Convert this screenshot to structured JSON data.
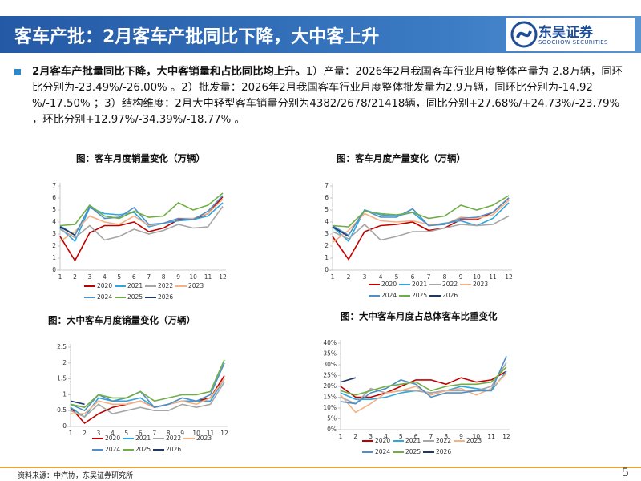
{
  "header": {
    "title": "客车产批：2月客车产批同比下降，大中客上升",
    "logo_cn": "东吴证券",
    "logo_en": "SOOCHOW SECURITIES"
  },
  "body": {
    "lead": "2月客车产批量同比下降，大中客销量和占比同比均上升。",
    "text": "1）产量：2026年2月我国客车行业月度整体产量为 2.8万辆，同环比分别为-23.49%/-26.00% 。2）批发量：2026年2月我国客车行业月度整体批发量为2.9万辆，同环比分别为-14.92 %/-17.50% ；3）结构维度：2月大中轻型客车销量分别为4382/2678/21418辆，同比分别+27.68%/+24.73%/-23.79% ，环比分别+12.97%/-34.39%/-18.77% 。"
  },
  "chart_data": [
    {
      "type": "line",
      "title": "图：客车月度销量变化（万辆）",
      "categories": [
        "1",
        "2",
        "3",
        "4",
        "5",
        "6",
        "7",
        "8",
        "9",
        "10",
        "11",
        "12"
      ],
      "ylim": [
        0,
        7
      ],
      "yticks": [
        0,
        1,
        2,
        3,
        4,
        5,
        6,
        7
      ],
      "series": [
        {
          "name": "2020",
          "color": "#c00000",
          "values": [
            2.8,
            0.8,
            3.1,
            3.7,
            3.7,
            4.0,
            3.2,
            3.5,
            4.2,
            4.2,
            4.7,
            6.1
          ]
        },
        {
          "name": "2021",
          "color": "#2ea6e0",
          "values": [
            3.5,
            2.4,
            5.2,
            4.7,
            4.6,
            4.8,
            3.6,
            3.9,
            4.1,
            4.2,
            4.5,
            5.6
          ]
        },
        {
          "name": "2022",
          "color": "#a6a6a6",
          "values": [
            3.4,
            2.7,
            3.7,
            2.5,
            2.8,
            3.4,
            3.0,
            3.3,
            3.8,
            3.5,
            3.6,
            5.3
          ]
        },
        {
          "name": "2023",
          "color": "#f4b183",
          "values": [
            2.4,
            3.2,
            4.5,
            4.0,
            3.8,
            4.5,
            3.7,
            3.9,
            4.3,
            4.3,
            4.7,
            5.9
          ]
        },
        {
          "name": "2024",
          "color": "#4f8fc6",
          "values": [
            3.7,
            2.9,
            5.3,
            4.3,
            4.4,
            5.2,
            3.8,
            3.9,
            4.3,
            4.2,
            4.9,
            6.2
          ]
        },
        {
          "name": "2025",
          "color": "#70ad47",
          "values": [
            3.7,
            3.8,
            5.4,
            4.5,
            4.3,
            4.9,
            4.4,
            4.5,
            5.6,
            5.0,
            5.4,
            6.4
          ]
        },
        {
          "name": "2026",
          "color": "#1f3864",
          "values": [
            3.6,
            2.9,
            null,
            null,
            null,
            null,
            null,
            null,
            null,
            null,
            null,
            null
          ]
        }
      ]
    },
    {
      "type": "line",
      "title": "图：客车月度产量变化（万辆）",
      "categories": [
        "1",
        "2",
        "3",
        "4",
        "5",
        "6",
        "7",
        "8",
        "9",
        "10",
        "11",
        "12"
      ],
      "ylim": [
        0,
        7
      ],
      "yticks": [
        0,
        1,
        2,
        3,
        4,
        5,
        6,
        7
      ],
      "series": [
        {
          "name": "2020",
          "color": "#c00000",
          "values": [
            2.8,
            0.9,
            3.2,
            3.7,
            3.8,
            4.0,
            3.3,
            3.5,
            4.2,
            4.2,
            4.8,
            6.0
          ]
        },
        {
          "name": "2021",
          "color": "#2ea6e0",
          "values": [
            3.6,
            2.4,
            5.0,
            4.6,
            4.5,
            4.8,
            3.7,
            3.9,
            4.1,
            3.7,
            4.3,
            5.6
          ]
        },
        {
          "name": "2022",
          "color": "#a6a6a6",
          "values": [
            3.2,
            2.6,
            3.8,
            2.5,
            2.8,
            3.2,
            3.2,
            3.5,
            3.8,
            3.7,
            3.8,
            4.5
          ]
        },
        {
          "name": "2023",
          "color": "#f4b183",
          "values": [
            2.3,
            3.3,
            4.7,
            4.1,
            4.0,
            4.1,
            3.8,
            3.8,
            4.4,
            4.3,
            4.6,
            5.8
          ]
        },
        {
          "name": "2024",
          "color": "#4f8fc6",
          "values": [
            3.7,
            2.9,
            5.0,
            4.4,
            4.4,
            5.1,
            3.7,
            3.8,
            4.3,
            4.4,
            4.8,
            6.0
          ]
        },
        {
          "name": "2025",
          "color": "#70ad47",
          "values": [
            3.7,
            3.6,
            4.9,
            4.7,
            4.6,
            4.8,
            4.3,
            4.5,
            5.4,
            5.0,
            5.4,
            6.2
          ]
        },
        {
          "name": "2026",
          "color": "#1f3864",
          "values": [
            3.6,
            2.8,
            null,
            null,
            null,
            null,
            null,
            null,
            null,
            null,
            null,
            null
          ]
        }
      ]
    },
    {
      "type": "line",
      "title": "图：大中客车月度销量变化（万辆）",
      "categories": [
        "1",
        "2",
        "3",
        "4",
        "5",
        "6",
        "7",
        "8",
        "9",
        "10",
        "11",
        "12"
      ],
      "ylim": [
        0,
        2.5
      ],
      "yticks": [
        0,
        0.5,
        1,
        1.5,
        2,
        2.5
      ],
      "series": [
        {
          "name": "2020",
          "color": "#c00000",
          "values": [
            0.6,
            0.1,
            0.4,
            0.6,
            0.7,
            0.8,
            0.6,
            0.7,
            0.8,
            0.8,
            0.9,
            1.6
          ]
        },
        {
          "name": "2021",
          "color": "#2ea6e0",
          "values": [
            0.6,
            0.3,
            0.9,
            0.8,
            0.8,
            0.9,
            0.6,
            0.7,
            0.8,
            0.8,
            0.8,
            1.5
          ]
        },
        {
          "name": "2022",
          "color": "#a6a6a6",
          "values": [
            0.5,
            0.3,
            0.7,
            0.4,
            0.5,
            0.6,
            0.5,
            0.5,
            0.7,
            0.6,
            0.7,
            1.4
          ]
        },
        {
          "name": "2023",
          "color": "#f4b183",
          "values": [
            0.4,
            0.4,
            0.8,
            0.7,
            0.7,
            0.8,
            0.6,
            0.7,
            0.8,
            0.7,
            0.9,
            1.5
          ]
        },
        {
          "name": "2024",
          "color": "#4f8fc6",
          "values": [
            0.7,
            0.5,
            1.0,
            0.8,
            0.9,
            1.1,
            0.6,
            0.7,
            0.9,
            0.8,
            1.0,
            2.0
          ]
        },
        {
          "name": "2025",
          "color": "#70ad47",
          "values": [
            0.7,
            0.6,
            1.0,
            0.9,
            0.9,
            1.1,
            0.8,
            0.9,
            1.0,
            1.0,
            1.1,
            2.1
          ]
        },
        {
          "name": "2026",
          "color": "#1f3864",
          "values": [
            0.8,
            0.7,
            null,
            null,
            null,
            null,
            null,
            null,
            null,
            null,
            null,
            null
          ]
        }
      ]
    },
    {
      "type": "line",
      "title": "图：大中客车月度占总体客车比重变化",
      "categories": [
        "1",
        "2",
        "3",
        "4",
        "5",
        "6",
        "7",
        "8",
        "9",
        "10",
        "11",
        "12"
      ],
      "ylim": [
        0,
        40
      ],
      "yticks": [
        {
          "value": 0,
          "label": "0%"
        },
        {
          "value": 5,
          "label": "5%"
        },
        {
          "value": 10,
          "label": "10%"
        },
        {
          "value": 15,
          "label": "15%"
        },
        {
          "value": 20,
          "label": "20%"
        },
        {
          "value": 25,
          "label": "25%"
        },
        {
          "value": 30,
          "label": "30%"
        },
        {
          "value": 35,
          "label": "35%"
        },
        {
          "value": 40,
          "label": "40%"
        }
      ],
      "series": [
        {
          "name": "2020",
          "color": "#c00000",
          "values": [
            20,
            15,
            15,
            17,
            20,
            23,
            23,
            21,
            24,
            22,
            23,
            27
          ]
        },
        {
          "name": "2021",
          "color": "#2ea6e0",
          "values": [
            17,
            14,
            14,
            15,
            17,
            18,
            17,
            18,
            20,
            19,
            18,
            27
          ]
        },
        {
          "name": "2022",
          "color": "#a6a6a6",
          "values": [
            15,
            12,
            19,
            17,
            18,
            18,
            17,
            18,
            18,
            18,
            20,
            31
          ]
        },
        {
          "name": "2023",
          "color": "#f4b183",
          "values": [
            16,
            8,
            12,
            17,
            18,
            20,
            16,
            18,
            19,
            16,
            19,
            26
          ]
        },
        {
          "name": "2024",
          "color": "#4f8fc6",
          "values": [
            13,
            12,
            17,
            19,
            23,
            21,
            15,
            17,
            17,
            18,
            18,
            34
          ]
        },
        {
          "name": "2025",
          "color": "#70ad47",
          "values": [
            18,
            16,
            18,
            20,
            21,
            22,
            18,
            20,
            21,
            21,
            22,
            29
          ]
        },
        {
          "name": "2026",
          "color": "#1f3864",
          "values": [
            22,
            24,
            null,
            null,
            null,
            null,
            null,
            null,
            null,
            null,
            null,
            null
          ]
        }
      ]
    }
  ],
  "footer": {
    "source": "资料来源：中汽协，东吴证券研究所",
    "page": "5"
  }
}
